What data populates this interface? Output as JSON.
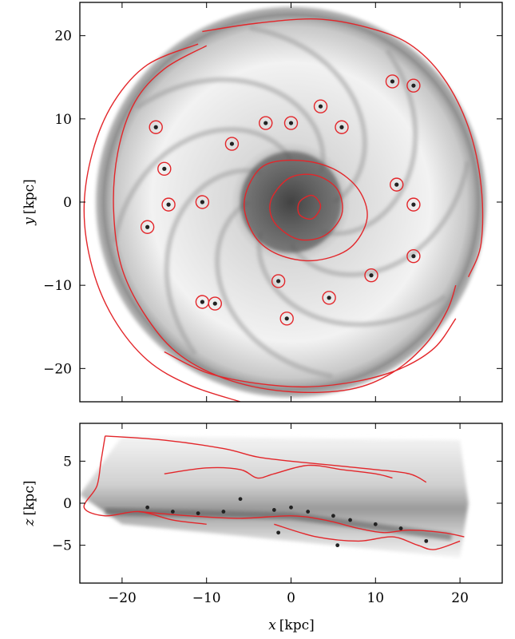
{
  "chart_data": [
    {
      "type": "heatmap",
      "panel": "face-on",
      "xlabel_var": "x",
      "xlabel_unit": "[kpc]",
      "ylabel_var": "y",
      "ylabel_unit": "[kpc]",
      "xlim": [
        -25,
        25
      ],
      "ylim": [
        -24,
        24
      ],
      "xticks": [
        -20,
        -10,
        0,
        10,
        20
      ],
      "yticks": [
        -20,
        -10,
        0,
        10,
        20
      ],
      "xtick_labels_shown": false,
      "colormap": "greyscale",
      "contour_color": "#e3262a",
      "disk_center": [
        0,
        0
      ],
      "ring_radius_kpc": 22.5,
      "contours": [
        {
          "name": "outer-ring-outer",
          "points": [
            [
              -10.5,
              20.5
            ],
            [
              -4,
              21.5
            ],
            [
              3,
              22
            ],
            [
              9,
              21
            ],
            [
              14,
              19
            ],
            [
              18,
              15
            ],
            [
              21,
              9
            ],
            [
              22.5,
              2
            ],
            [
              22.5,
              -5
            ],
            [
              21,
              -9
            ]
          ]
        },
        {
          "name": "outer-ring-inner",
          "points": [
            [
              -10,
              18.8
            ],
            [
              -15,
              16
            ],
            [
              -18.5,
              12
            ],
            [
              -20.5,
              6
            ],
            [
              -21,
              -1
            ],
            [
              -20,
              -8
            ],
            [
              -17,
              -14
            ],
            [
              -13,
              -18.5
            ],
            [
              -7,
              -21.5
            ],
            [
              0,
              -22.8
            ],
            [
              7,
              -22.5
            ],
            [
              12,
              -20.5
            ],
            [
              16,
              -17
            ],
            [
              18.5,
              -13
            ],
            [
              19.5,
              -10
            ]
          ]
        },
        {
          "name": "left-arc",
          "points": [
            [
              -11,
              19
            ],
            [
              -17,
              16.5
            ],
            [
              -21,
              12
            ],
            [
              -23.5,
              6
            ],
            [
              -24.5,
              -1
            ],
            [
              -23.5,
              -8
            ],
            [
              -21,
              -14
            ],
            [
              -17,
              -19
            ],
            [
              -12,
              -22
            ],
            [
              -6,
              -24
            ]
          ]
        },
        {
          "name": "bottom-arc",
          "points": [
            [
              -15,
              -18
            ],
            [
              -10,
              -20.5
            ],
            [
              -4,
              -21.8
            ],
            [
              2,
              -22.2
            ],
            [
              8,
              -21.5
            ],
            [
              13,
              -20
            ],
            [
              17,
              -17.5
            ],
            [
              19.5,
              -14
            ]
          ]
        },
        {
          "name": "core-outer",
          "points": [
            [
              -5,
              2
            ],
            [
              -3,
              4.5
            ],
            [
              1,
              5
            ],
            [
              5,
              4
            ],
            [
              8,
              1.5
            ],
            [
              9,
              -2
            ],
            [
              7,
              -5.5
            ],
            [
              3,
              -7
            ],
            [
              -1,
              -6.5
            ],
            [
              -4,
              -4.5
            ],
            [
              -5.5,
              -1
            ]
          ]
        },
        {
          "name": "core-inner",
          "points": [
            [
              -2,
              1
            ],
            [
              0,
              3
            ],
            [
              3,
              3.2
            ],
            [
              5.5,
              1.5
            ],
            [
              6,
              -1.5
            ],
            [
              4,
              -4
            ],
            [
              1,
              -4.5
            ],
            [
              -1.5,
              -3
            ],
            [
              -2.5,
              -1
            ]
          ]
        },
        {
          "name": "core-center",
          "points": [
            [
              1,
              0
            ],
            [
              2.5,
              0.8
            ],
            [
              3.5,
              -0.5
            ],
            [
              2.5,
              -2
            ],
            [
              1,
              -1.5
            ]
          ]
        }
      ],
      "clumps": [
        {
          "x": -16,
          "y": 9
        },
        {
          "x": -17,
          "y": -3
        },
        {
          "x": -15,
          "y": 4
        },
        {
          "x": -10.5,
          "y": -12
        },
        {
          "x": -9,
          "y": -12.2
        },
        {
          "x": -0.5,
          "y": -14
        },
        {
          "x": -1.5,
          "y": -9.5
        },
        {
          "x": 4.5,
          "y": -11.5
        },
        {
          "x": 9.5,
          "y": -8.8
        },
        {
          "x": 12.5,
          "y": 2.1
        },
        {
          "x": 14.5,
          "y": -0.3
        },
        {
          "x": 14.5,
          "y": -6.5
        },
        {
          "x": 6,
          "y": 9
        },
        {
          "x": 0,
          "y": 9.5
        },
        {
          "x": -14.5,
          "y": -0.3
        },
        {
          "x": -10.5,
          "y": 0
        },
        {
          "x": 3.5,
          "y": 11.5
        },
        {
          "x": -3,
          "y": 9.5
        },
        {
          "x": -7,
          "y": 7
        },
        {
          "x": 12,
          "y": 14.5
        },
        {
          "x": 14.5,
          "y": 14
        }
      ]
    },
    {
      "type": "heatmap",
      "panel": "edge-on",
      "xlabel_var": "x",
      "xlabel_unit": "[kpc]",
      "ylabel_var": "z",
      "ylabel_unit": "[kpc]",
      "xlim": [
        -25,
        25
      ],
      "ylim": [
        -9.5,
        9.5
      ],
      "xticks": [
        -20,
        -10,
        0,
        10,
        20
      ],
      "yticks": [
        -5,
        0,
        5
      ],
      "colormap": "greyscale",
      "contour_color": "#e3262a",
      "contours": [
        {
          "name": "upper-envelope",
          "points": [
            [
              -22,
              8
            ],
            [
              -15,
              7.5
            ],
            [
              -8,
              6.5
            ],
            [
              -4,
              5.5
            ],
            [
              0,
              5
            ],
            [
              5,
              4.5
            ],
            [
              10,
              4
            ],
            [
              14,
              3.5
            ],
            [
              16,
              2.5
            ]
          ]
        },
        {
          "name": "left-lobe",
          "points": [
            [
              -22,
              8
            ],
            [
              -22.5,
              5
            ],
            [
              -23,
              2
            ],
            [
              -24.5,
              -0.5
            ],
            [
              -22,
              -1.5
            ],
            [
              -18,
              -1
            ],
            [
              -14,
              -2
            ],
            [
              -10,
              -2.5
            ]
          ]
        },
        {
          "name": "midplane-band",
          "points": [
            [
              -18,
              -1
            ],
            [
              -12,
              -1.5
            ],
            [
              -6,
              -1.8
            ],
            [
              0,
              -1.5
            ],
            [
              4,
              -2
            ],
            [
              8,
              -3
            ],
            [
              11,
              -3.5
            ],
            [
              14,
              -3.2
            ],
            [
              18,
              -3.5
            ],
            [
              20.5,
              -4
            ]
          ]
        },
        {
          "name": "upper-inner",
          "points": [
            [
              -15,
              3.5
            ],
            [
              -10,
              4.2
            ],
            [
              -6,
              4
            ],
            [
              -4,
              3
            ],
            [
              -2,
              3.5
            ],
            [
              2,
              4.5
            ],
            [
              6,
              4
            ],
            [
              10,
              3.5
            ],
            [
              12,
              3
            ]
          ]
        },
        {
          "name": "lower-band",
          "points": [
            [
              -2,
              -2.5
            ],
            [
              3,
              -4
            ],
            [
              8,
              -4.5
            ],
            [
              12,
              -4
            ],
            [
              15,
              -5
            ],
            [
              17,
              -5.5
            ],
            [
              20,
              -4.5
            ]
          ]
        }
      ],
      "clumps": [
        {
          "x": -17,
          "y": -0.5
        },
        {
          "x": -14,
          "y": -1
        },
        {
          "x": -11,
          "y": -1.2
        },
        {
          "x": -8,
          "y": -1
        },
        {
          "x": -6,
          "y": 0.5
        },
        {
          "x": -2,
          "y": -0.8
        },
        {
          "x": 0,
          "y": -0.5
        },
        {
          "x": 2,
          "y": -1
        },
        {
          "x": 5,
          "y": -1.5
        },
        {
          "x": 7,
          "y": -2
        },
        {
          "x": 10,
          "y": -2.5
        },
        {
          "x": 13,
          "y": -3
        },
        {
          "x": 16,
          "y": -4.5
        },
        {
          "x": -1.5,
          "y": -3.5
        },
        {
          "x": 5.5,
          "y": -5
        }
      ]
    }
  ]
}
